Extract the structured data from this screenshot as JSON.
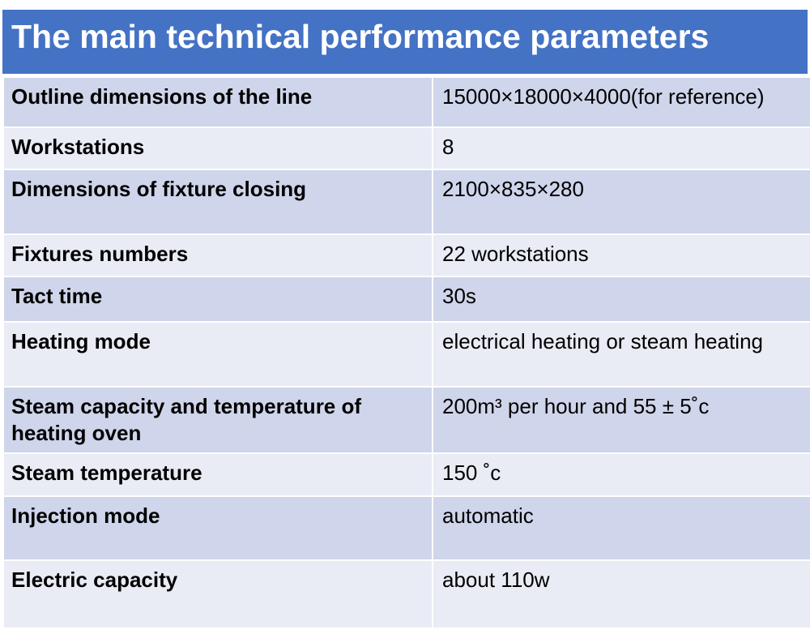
{
  "title": "The main technical performance parameters",
  "rows": [
    {
      "label": "Outline dimensions of the line",
      "value": "15000×18000×4000(for reference)"
    },
    {
      "label": "Workstations",
      "value": "8"
    },
    {
      "label": "Dimensions of fixture closing",
      "value": "2100×835×280"
    },
    {
      "label": "Fixtures numbers",
      "value": "22 workstations"
    },
    {
      "label": "Tact time",
      "value": "30s"
    },
    {
      "label": "Heating mode",
      "value": "electrical heating or steam heating"
    },
    {
      "label": "Steam capacity and temperature of heating oven",
      "value": "200m³ per hour and 55 ± 5˚c"
    },
    {
      "label": "Steam temperature",
      "value": "150 ˚c"
    },
    {
      "label": "Injection mode",
      "value": "automatic"
    },
    {
      "label": "Electric capacity",
      "value": "about 110w"
    }
  ],
  "colors": {
    "header": "#4472c4",
    "row_dark": "#cfd5ea",
    "row_light": "#e9ebf5"
  }
}
